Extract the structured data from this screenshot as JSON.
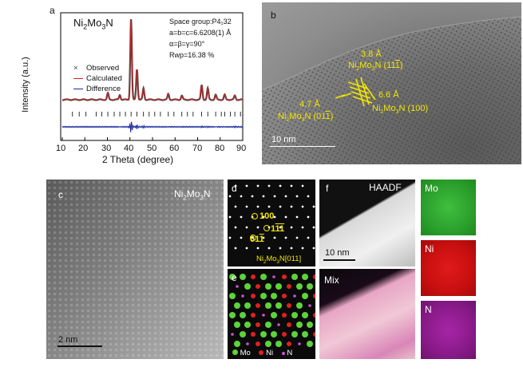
{
  "panels": {
    "a": {
      "letter": "a",
      "compound": "Ni2Mo3N",
      "info": [
        "Space group:P4₁32",
        "a=b=c=6.6208(1) Å",
        "α=β=γ=90°",
        "Rwp=16.38 %"
      ],
      "legend": [
        "Observed",
        "Calculated",
        "Difference"
      ],
      "ylabel": "Intensity (a.u.)",
      "xlabel": "2 Theta (degree)",
      "xticks": [
        "10",
        "20",
        "30",
        "40",
        "50",
        "60",
        "70",
        "80",
        "90"
      ],
      "colors": {
        "observed": "#444444",
        "calculated": "#e02020",
        "difference": "#1a2a9a",
        "ticks": "#000000"
      }
    },
    "b": {
      "letter": "b",
      "labels": [
        "3.8 Å",
        "Ni2Mo3N (111̄)",
        "6.6 Å",
        "Ni2Mo3N (100)",
        "4.7 Å",
        "Ni2Mo3N (011̄)"
      ],
      "scalebar": "10 nm"
    },
    "c": {
      "letter": "c",
      "compound": "Ni2Mo3N",
      "scalebar": "2 nm"
    },
    "d": {
      "letter": "d",
      "spots": [
        "100",
        "11̄1̄",
        "011̄"
      ],
      "zone": "Ni2Mo3N[011]"
    },
    "e": {
      "letter": "e",
      "legend": [
        "Mo",
        "Ni",
        "N"
      ]
    },
    "f": {
      "letter": "f",
      "label": "HAADF",
      "scalebar": "10 nm",
      "mix": "Mix"
    },
    "maps": [
      "Mo",
      "Ni",
      "N"
    ]
  },
  "chart_data": {
    "type": "line",
    "title": "",
    "xlabel": "2 Theta (degree)",
    "ylabel": "Intensity (a.u.)",
    "xlim": [
      10,
      90
    ],
    "grid": false,
    "legend_position": "top-left",
    "series": [
      {
        "name": "Observed",
        "peaks": [
          [
            40.5,
            100
          ],
          [
            43.1,
            38
          ],
          [
            46.0,
            14
          ],
          [
            30.2,
            8
          ],
          [
            35.5,
            6
          ],
          [
            57.0,
            7
          ],
          [
            63.0,
            5
          ],
          [
            71.8,
            18
          ],
          [
            74.5,
            14
          ],
          [
            78.0,
            6
          ],
          [
            82.0,
            6
          ],
          [
            86.5,
            5
          ]
        ]
      },
      {
        "name": "Calculated",
        "peaks": [
          [
            40.5,
            100
          ],
          [
            43.1,
            38
          ],
          [
            46.0,
            14
          ],
          [
            30.2,
            8
          ],
          [
            35.5,
            6
          ],
          [
            57.0,
            7
          ],
          [
            63.0,
            5
          ],
          [
            71.8,
            18
          ],
          [
            74.5,
            14
          ],
          [
            78.0,
            6
          ],
          [
            82.0,
            6
          ],
          [
            86.5,
            5
          ]
        ]
      },
      {
        "name": "Difference"
      }
    ],
    "bragg_positions": [
      14.5,
      17.5,
      20.5,
      25,
      27.5,
      30.2,
      33,
      35.5,
      38,
      40.5,
      43.1,
      46,
      48.5,
      51,
      53.5,
      57,
      59.5,
      63,
      65.5,
      68,
      71.8,
      74.5,
      78,
      80.5,
      82,
      84.5,
      86.5,
      89
    ]
  }
}
